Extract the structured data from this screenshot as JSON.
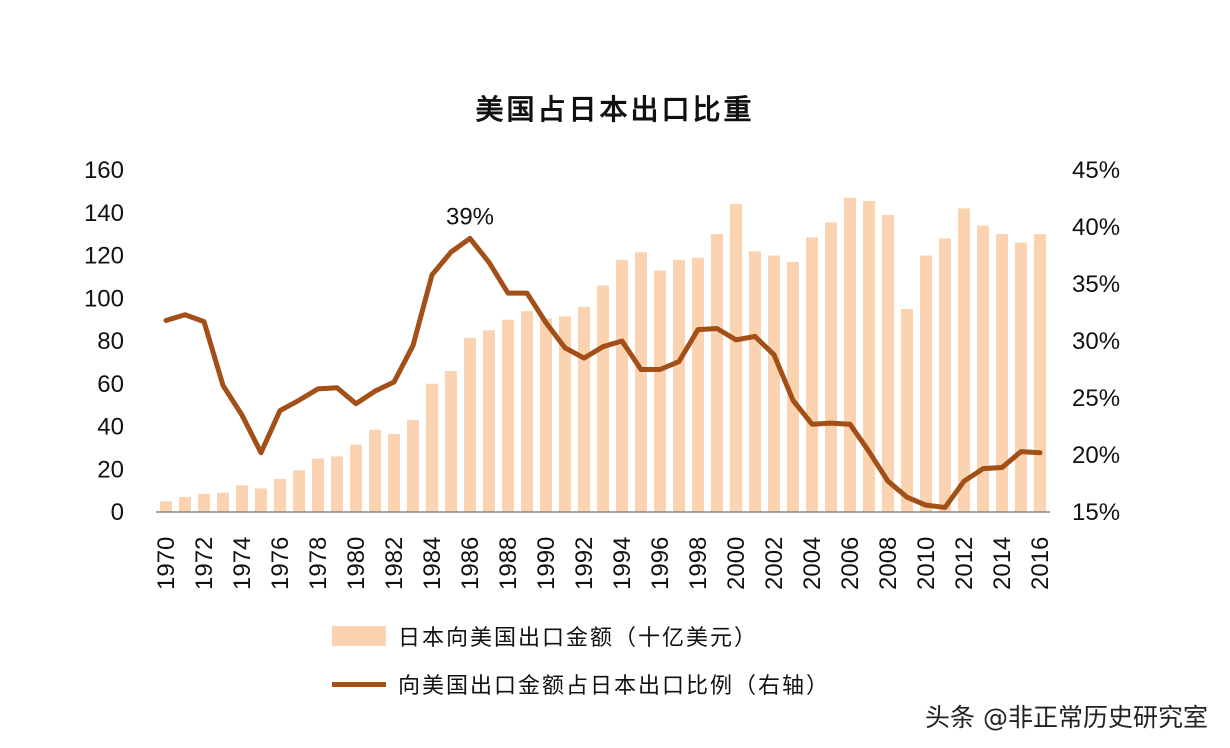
{
  "chart_data": {
    "type": "bar+line",
    "title": "美国占日本出口比重",
    "categories": [
      1970,
      1971,
      1972,
      1973,
      1974,
      1975,
      1976,
      1977,
      1978,
      1979,
      1980,
      1981,
      1982,
      1983,
      1984,
      1985,
      1986,
      1987,
      1988,
      1989,
      1990,
      1991,
      1992,
      1993,
      1994,
      1995,
      1996,
      1997,
      1998,
      1999,
      2000,
      2001,
      2002,
      2003,
      2004,
      2005,
      2006,
      2007,
      2008,
      2009,
      2010,
      2011,
      2012,
      2013,
      2014,
      2015,
      2016
    ],
    "x_tick_labels": [
      "1970",
      "1972",
      "1974",
      "1976",
      "1978",
      "1980",
      "1982",
      "1984",
      "1986",
      "1988",
      "1990",
      "1992",
      "1994",
      "1996",
      "1998",
      "2000",
      "2002",
      "2004",
      "2006",
      "2008",
      "2010",
      "2012",
      "2014",
      "2016"
    ],
    "left_axis": {
      "ylim": [
        0,
        160
      ],
      "ticks": [
        "0",
        "20",
        "40",
        "60",
        "80",
        "100",
        "120",
        "140",
        "160"
      ]
    },
    "right_axis": {
      "ylim": [
        15,
        45
      ],
      "ticks": [
        "15%",
        "20%",
        "25%",
        "30%",
        "35%",
        "40%",
        "45%"
      ]
    },
    "series": [
      {
        "name": "日本向美国出口金额（十亿美元）",
        "type": "bar",
        "axis": "left",
        "color": "#fbd3b1",
        "values": [
          5,
          7,
          8.5,
          9,
          12.5,
          11,
          15.5,
          19.5,
          25,
          26,
          31.5,
          38.5,
          36.5,
          43,
          60,
          66,
          81.5,
          85,
          90,
          94,
          90.5,
          91.5,
          96,
          106,
          118,
          121.5,
          113,
          118,
          119,
          130,
          144,
          122,
          120,
          117,
          128.5,
          135.5,
          147,
          145.5,
          139,
          95,
          120,
          128,
          142,
          134,
          130,
          126,
          130
        ]
      },
      {
        "name": "向美国出口金额占日本出口比例（右轴）",
        "type": "line",
        "axis": "right",
        "color": "#a24f18",
        "values": [
          31.8,
          32.3,
          31.7,
          26.1,
          23.5,
          20.2,
          23.9,
          24.8,
          25.8,
          25.9,
          24.5,
          25.6,
          26.4,
          29.6,
          35.8,
          37.8,
          39,
          36.9,
          34.2,
          34.2,
          31.6,
          29.4,
          28.5,
          29.5,
          30,
          27.5,
          27.5,
          28.2,
          31,
          31.1,
          30.1,
          30.4,
          28.8,
          24.8,
          22.7,
          22.8,
          22.7,
          20.3,
          17.7,
          16.3,
          15.6,
          15.4,
          17.7,
          18.8,
          18.9,
          20.3,
          20.2
        ]
      }
    ],
    "annotations": [
      {
        "text": "39%",
        "x": 1986
      }
    ],
    "grid": false,
    "legend_placement": "bottom"
  },
  "watermark": "头条 @非正常历史研究室"
}
